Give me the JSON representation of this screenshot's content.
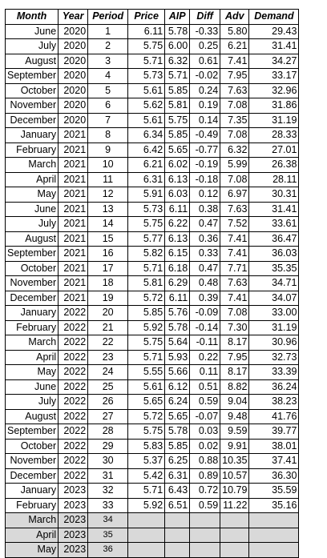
{
  "headers": {
    "month": "Month",
    "year": "Year",
    "period": "Period",
    "price": "Price",
    "aip": "AIP",
    "diff": "Diff",
    "adv": "Adv",
    "demand": "Demand"
  },
  "rows": [
    [
      "June",
      "2020",
      "1",
      "6.11",
      "5.78",
      "-0.33",
      "5.80",
      "29.43"
    ],
    [
      "July",
      "2020",
      "2",
      "5.75",
      "6.00",
      "0.25",
      "6.21",
      "31.41"
    ],
    [
      "August",
      "2020",
      "3",
      "5.71",
      "6.32",
      "0.61",
      "7.41",
      "34.27"
    ],
    [
      "September",
      "2020",
      "4",
      "5.73",
      "5.71",
      "-0.02",
      "7.95",
      "33.17"
    ],
    [
      "October",
      "2020",
      "5",
      "5.61",
      "5.85",
      "0.24",
      "7.63",
      "32.96"
    ],
    [
      "November",
      "2020",
      "6",
      "5.62",
      "5.81",
      "0.19",
      "7.08",
      "31.86"
    ],
    [
      "December",
      "2020",
      "7",
      "5.61",
      "5.75",
      "0.14",
      "7.35",
      "31.19"
    ],
    [
      "January",
      "2021",
      "8",
      "6.34",
      "5.85",
      "-0.49",
      "7.08",
      "28.33"
    ],
    [
      "February",
      "2021",
      "9",
      "6.42",
      "5.65",
      "-0.77",
      "6.32",
      "27.01"
    ],
    [
      "March",
      "2021",
      "10",
      "6.21",
      "6.02",
      "-0.19",
      "5.99",
      "26.38"
    ],
    [
      "April",
      "2021",
      "11",
      "6.31",
      "6.13",
      "-0.18",
      "7.08",
      "28.11"
    ],
    [
      "May",
      "2021",
      "12",
      "5.91",
      "6.03",
      "0.12",
      "6.97",
      "30.31"
    ],
    [
      "June",
      "2021",
      "13",
      "5.73",
      "6.11",
      "0.38",
      "7.63",
      "31.41"
    ],
    [
      "July",
      "2021",
      "14",
      "5.75",
      "6.22",
      "0.47",
      "7.52",
      "33.61"
    ],
    [
      "August",
      "2021",
      "15",
      "5.77",
      "6.13",
      "0.36",
      "7.41",
      "36.47"
    ],
    [
      "September",
      "2021",
      "16",
      "5.82",
      "6.15",
      "0.33",
      "7.41",
      "36.03"
    ],
    [
      "October",
      "2021",
      "17",
      "5.71",
      "6.18",
      "0.47",
      "7.71",
      "35.35"
    ],
    [
      "November",
      "2021",
      "18",
      "5.81",
      "6.29",
      "0.48",
      "7.63",
      "34.71"
    ],
    [
      "December",
      "2021",
      "19",
      "5.72",
      "6.11",
      "0.39",
      "7.41",
      "34.07"
    ],
    [
      "January",
      "2022",
      "20",
      "5.85",
      "5.76",
      "-0.09",
      "7.08",
      "33.00"
    ],
    [
      "February",
      "2022",
      "21",
      "5.92",
      "5.78",
      "-0.14",
      "7.30",
      "31.19"
    ],
    [
      "March",
      "2022",
      "22",
      "5.75",
      "5.64",
      "-0.11",
      "8.17",
      "30.96"
    ],
    [
      "April",
      "2022",
      "23",
      "5.71",
      "5.93",
      "0.22",
      "7.95",
      "32.73"
    ],
    [
      "May",
      "2022",
      "24",
      "5.55",
      "5.66",
      "0.11",
      "8.17",
      "33.39"
    ],
    [
      "June",
      "2022",
      "25",
      "5.61",
      "6.12",
      "0.51",
      "8.82",
      "36.24"
    ],
    [
      "July",
      "2022",
      "26",
      "5.65",
      "6.24",
      "0.59",
      "9.04",
      "38.23"
    ],
    [
      "August",
      "2022",
      "27",
      "5.72",
      "5.65",
      "-0.07",
      "9.48",
      "41.76"
    ],
    [
      "September",
      "2022",
      "28",
      "5.75",
      "5.78",
      "0.03",
      "9.59",
      "39.77"
    ],
    [
      "October",
      "2022",
      "29",
      "5.83",
      "5.85",
      "0.02",
      "9.91",
      "38.01"
    ],
    [
      "November",
      "2022",
      "30",
      "5.37",
      "6.25",
      "0.88",
      "10.35",
      "37.41"
    ],
    [
      "December",
      "2022",
      "31",
      "5.42",
      "6.31",
      "0.89",
      "10.57",
      "36.30"
    ],
    [
      "January",
      "2023",
      "32",
      "5.71",
      "6.43",
      "0.72",
      "10.79",
      "35.59"
    ],
    [
      "February",
      "2023",
      "33",
      "5.92",
      "6.51",
      "0.59",
      "11.22",
      "35.16"
    ]
  ],
  "forecast_rows": [
    [
      "March",
      "2023",
      "34"
    ],
    [
      "April",
      "2023",
      "35"
    ],
    [
      "May",
      "2023",
      "36"
    ]
  ],
  "colors": {
    "forecast_fill": "#d9d9d9",
    "gridline": "#d4d4d4",
    "border": "#000000"
  }
}
